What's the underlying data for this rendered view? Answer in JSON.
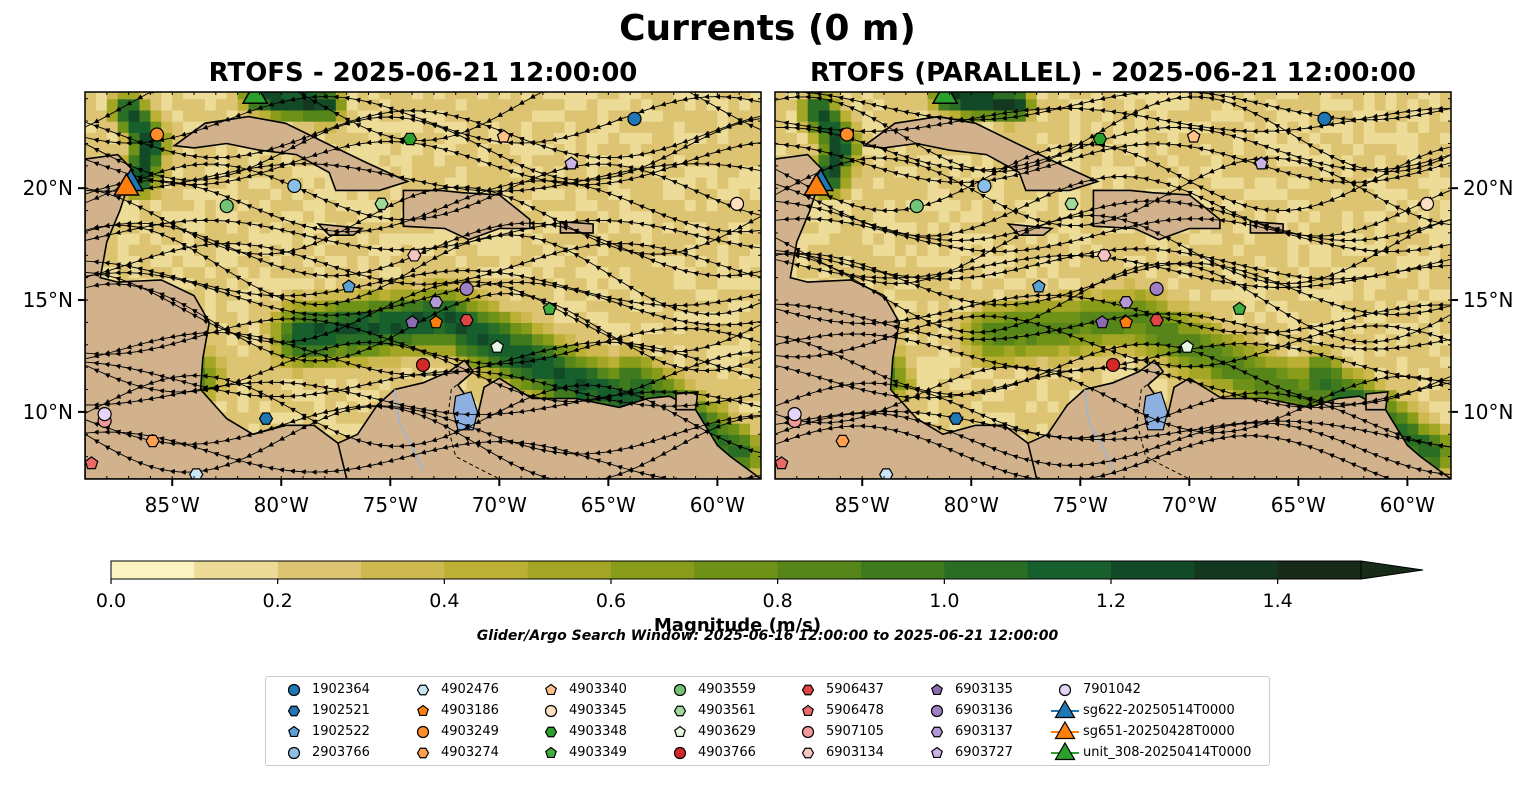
{
  "figure": {
    "title": "Currents (0 m)",
    "colorbar_label": "Magnitude (m/s)",
    "search_window": "Glider/Argo Search Window: 2025-06-16 12:00:00 to 2025-06-21 12:00:00"
  },
  "chart_data": [
    {
      "type": "heatmap",
      "title": "RTOFS - 2025-06-21 12:00:00",
      "xlim": [
        -89.0,
        -58.0
      ],
      "ylim": [
        7.0,
        24.3
      ],
      "xticks": [
        "85°W",
        "80°W",
        "75°W",
        "70°W",
        "65°W",
        "60°W"
      ],
      "xtick_values": [
        -85,
        -80,
        -75,
        -70,
        -65,
        -60
      ],
      "yticks": [
        "20°N",
        "15°N",
        "10°N"
      ],
      "ytick_values": [
        20,
        15,
        10
      ],
      "ytick_side": "left",
      "field": "surface current magnitude with streamlines"
    },
    {
      "type": "heatmap",
      "title": "RTOFS (PARALLEL) - 2025-06-21 12:00:00",
      "xlim": [
        -89.0,
        -58.0
      ],
      "ylim": [
        7.0,
        24.3
      ],
      "xticks": [
        "85°W",
        "80°W",
        "75°W",
        "70°W",
        "65°W",
        "60°W"
      ],
      "xtick_values": [
        -85,
        -80,
        -75,
        -70,
        -65,
        -60
      ],
      "yticks": [
        "20°N",
        "15°N",
        "10°N"
      ],
      "ytick_values": [
        20,
        15,
        10
      ],
      "ytick_side": "right",
      "field": "surface current magnitude with streamlines"
    }
  ],
  "colorbar": {
    "min": 0.0,
    "max": 1.5,
    "step": 0.1,
    "extend": "max",
    "ticks": [
      0.0,
      0.2,
      0.4,
      0.6,
      0.8,
      1.0,
      1.2,
      1.4
    ],
    "tick_labels": [
      "0.0",
      "0.2",
      "0.4",
      "0.6",
      "0.8",
      "1.0",
      "1.2",
      "1.4"
    ],
    "colors": [
      "#fbf4c2",
      "#ecdc98",
      "#ddc472",
      "#ceb950",
      "#bcb034",
      "#a3a625",
      "#899c1a",
      "#6e9117",
      "#568519",
      "#3f7a1e",
      "#2a6e26",
      "#175f2c",
      "#124a27",
      "#14381f",
      "#182a18"
    ],
    "extend_color": "#182a18"
  },
  "map_colors": {
    "land": "#d1b28c",
    "lake": "#8eb0e0",
    "river": "#9bb7d4",
    "coast": "#000000"
  },
  "legend": {
    "items": [
      {
        "label": "1902364",
        "marker": "circle",
        "color": "#1f77b4"
      },
      {
        "label": "1902521",
        "marker": "hexagon",
        "color": "#1f77b4"
      },
      {
        "label": "1902522",
        "marker": "pentagon",
        "color": "#5b9fd4"
      },
      {
        "label": "2903766",
        "marker": "circle",
        "color": "#89bfe8"
      },
      {
        "label": "4902476",
        "marker": "hexagon",
        "color": "#cce6f7"
      },
      {
        "label": "4903186",
        "marker": "pentagon",
        "color": "#ff7f0e"
      },
      {
        "label": "4903249",
        "marker": "circle",
        "color": "#ff8c2b"
      },
      {
        "label": "4903274",
        "marker": "hexagon",
        "color": "#ffa050"
      },
      {
        "label": "4903340",
        "marker": "pentagon",
        "color": "#ffc08a"
      },
      {
        "label": "4903345",
        "marker": "circle",
        "color": "#ffe0c0"
      },
      {
        "label": "4903348",
        "marker": "hexagon",
        "color": "#2ca02c"
      },
      {
        "label": "4903349",
        "marker": "pentagon",
        "color": "#3fae3f"
      },
      {
        "label": "4903559",
        "marker": "circle",
        "color": "#74c476"
      },
      {
        "label": "4903561",
        "marker": "hexagon",
        "color": "#a1d99b"
      },
      {
        "label": "4903629",
        "marker": "pentagon",
        "color": "#e5f5e0"
      },
      {
        "label": "4903766",
        "marker": "circle",
        "color": "#d62728"
      },
      {
        "label": "5906437",
        "marker": "hexagon",
        "color": "#e04545"
      },
      {
        "label": "5906478",
        "marker": "pentagon",
        "color": "#ea6a6a"
      },
      {
        "label": "5907105",
        "marker": "circle",
        "color": "#f29a9a"
      },
      {
        "label": "6903134",
        "marker": "hexagon",
        "color": "#f7c4c4"
      },
      {
        "label": "6903135",
        "marker": "pentagon",
        "color": "#8c6bb1"
      },
      {
        "label": "6903136",
        "marker": "circle",
        "color": "#9e7fc4"
      },
      {
        "label": "6903137",
        "marker": "hexagon",
        "color": "#b497d6"
      },
      {
        "label": "6903727",
        "marker": "pentagon",
        "color": "#cbb2e6"
      },
      {
        "label": "7901042",
        "marker": "circle",
        "color": "#e6d5f7"
      },
      {
        "label": "sg622-20250514T0000",
        "marker": "triangle-line",
        "color": "#1f77b4"
      },
      {
        "label": "sg651-20250428T0000",
        "marker": "triangle-line",
        "color": "#ff7f0e"
      },
      {
        "label": "unit_308-20250414T0000",
        "marker": "triangle-line",
        "color": "#2ca02c"
      }
    ]
  },
  "observations": [
    {
      "id": "1902364",
      "lon": -63.8,
      "lat": 23.1
    },
    {
      "id": "1902521",
      "lon": -80.7,
      "lat": 9.7
    },
    {
      "id": "1902522",
      "lon": -76.9,
      "lat": 15.6
    },
    {
      "id": "2903766",
      "lon": -79.4,
      "lat": 20.1
    },
    {
      "id": "4902476",
      "lon": -83.9,
      "lat": 7.2
    },
    {
      "id": "4903186",
      "lon": -72.9,
      "lat": 14.0
    },
    {
      "id": "4903249",
      "lon": -85.7,
      "lat": 22.4
    },
    {
      "id": "4903274",
      "lon": -85.9,
      "lat": 8.7
    },
    {
      "id": "4903340",
      "lon": -69.8,
      "lat": 22.3
    },
    {
      "id": "4903345",
      "lon": -59.1,
      "lat": 19.3
    },
    {
      "id": "4903348",
      "lon": -74.1,
      "lat": 22.2
    },
    {
      "id": "4903349",
      "lon": -67.7,
      "lat": 14.6
    },
    {
      "id": "4903559",
      "lon": -82.5,
      "lat": 19.2
    },
    {
      "id": "4903561",
      "lon": -75.4,
      "lat": 19.3
    },
    {
      "id": "4903629",
      "lon": -70.1,
      "lat": 12.9
    },
    {
      "id": "4903766",
      "lon": -73.5,
      "lat": 12.1
    },
    {
      "id": "5906437",
      "lon": -71.5,
      "lat": 14.1
    },
    {
      "id": "5906478",
      "lon": -88.7,
      "lat": 7.7
    },
    {
      "id": "5907105",
      "lon": -88.1,
      "lat": 9.6
    },
    {
      "id": "6903134",
      "lon": -73.9,
      "lat": 17.0
    },
    {
      "id": "6903135",
      "lon": -74.0,
      "lat": 14.0
    },
    {
      "id": "6903136",
      "lon": -71.5,
      "lat": 15.5
    },
    {
      "id": "6903137",
      "lon": -72.9,
      "lat": 14.9
    },
    {
      "id": "6903727",
      "lon": -66.7,
      "lat": 21.1
    },
    {
      "id": "7901042",
      "lon": -88.1,
      "lat": 9.9
    }
  ],
  "gliders": [
    {
      "id": "sg622-20250514T0000",
      "lon": -86.9,
      "lat": 20.3
    },
    {
      "id": "sg651-20250428T0000",
      "lon": -87.1,
      "lat": 20.1
    },
    {
      "id": "unit_308-20250414T0000",
      "lon": -81.2,
      "lat": 24.2
    }
  ]
}
